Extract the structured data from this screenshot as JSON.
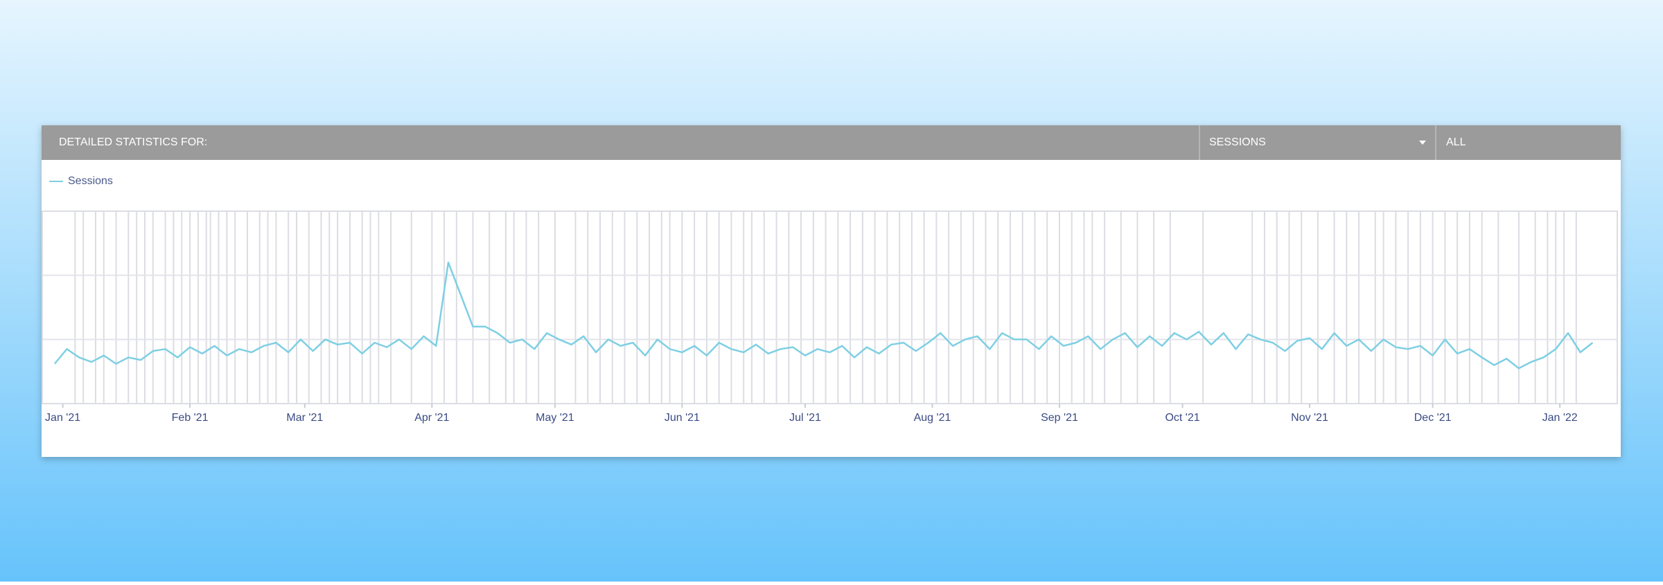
{
  "header": {
    "title": "DETAILED STATISTICS FOR:",
    "metric": "SESSIONS",
    "filter": "ALL"
  },
  "chart_data": {
    "type": "line",
    "x": [
      -2,
      1,
      4,
      7,
      10,
      13,
      16,
      19,
      22,
      25,
      28,
      31,
      34,
      37,
      40,
      43,
      46,
      49,
      52,
      55,
      58,
      61,
      64,
      67,
      70,
      73,
      76,
      79,
      82,
      85,
      88,
      91,
      94,
      97,
      100,
      103,
      106,
      109,
      112,
      115,
      118,
      121,
      124,
      127,
      130,
      133,
      136,
      139,
      142,
      145,
      148,
      151,
      154,
      157,
      160,
      163,
      166,
      169,
      172,
      175,
      178,
      181,
      184,
      187,
      190,
      193,
      196,
      199,
      202,
      205,
      208,
      211,
      214,
      217,
      220,
      223,
      226,
      229,
      232,
      235,
      238,
      241,
      244,
      247,
      250,
      253,
      256,
      259,
      262,
      265,
      268,
      271,
      274,
      277,
      280,
      283,
      286,
      289,
      292,
      295,
      298,
      301,
      304,
      307,
      310,
      313,
      316,
      319,
      322,
      325,
      328,
      331,
      334,
      337,
      340,
      343,
      346,
      349,
      352,
      355,
      358,
      361,
      364,
      367,
      370,
      373
    ],
    "series": [
      {
        "name": "Sessions",
        "color": "#7ecfe3",
        "values": [
          0.62,
          0.85,
          0.72,
          0.65,
          0.75,
          0.62,
          0.72,
          0.68,
          0.82,
          0.85,
          0.72,
          0.88,
          0.78,
          0.9,
          0.75,
          0.85,
          0.8,
          0.9,
          0.95,
          0.8,
          1.0,
          0.82,
          1.0,
          0.92,
          0.95,
          0.78,
          0.95,
          0.88,
          1.0,
          0.85,
          1.05,
          0.9,
          2.2,
          1.7,
          1.2,
          1.2,
          1.1,
          0.95,
          1.0,
          0.85,
          1.1,
          1.0,
          0.92,
          1.05,
          0.8,
          1.0,
          0.9,
          0.95,
          0.75,
          1.0,
          0.85,
          0.8,
          0.9,
          0.75,
          0.95,
          0.85,
          0.8,
          0.92,
          0.78,
          0.85,
          0.88,
          0.75,
          0.85,
          0.8,
          0.9,
          0.72,
          0.88,
          0.78,
          0.92,
          0.95,
          0.82,
          0.95,
          1.1,
          0.9,
          1.0,
          1.05,
          0.85,
          1.1,
          1.0,
          1.0,
          0.85,
          1.05,
          0.9,
          0.95,
          1.05,
          0.85,
          1.0,
          1.1,
          0.88,
          1.05,
          0.9,
          1.1,
          1.0,
          1.12,
          0.92,
          1.1,
          0.85,
          1.08,
          1.0,
          0.95,
          0.82,
          0.98,
          1.02,
          0.85,
          1.1,
          0.9,
          1.0,
          0.82,
          1.0,
          0.88,
          0.85,
          0.9,
          0.75,
          1.0,
          0.78,
          0.85,
          0.72,
          0.6,
          0.7,
          0.55,
          0.65,
          0.72,
          0.85,
          1.1,
          0.8,
          0.95
        ]
      }
    ],
    "markers": [
      3,
      5,
      8,
      10,
      13,
      16,
      18,
      20,
      22,
      25,
      27,
      29,
      31,
      33,
      35,
      36,
      38,
      40,
      42,
      45,
      48,
      50,
      52,
      55,
      57,
      60,
      63,
      65,
      67,
      70,
      73,
      75,
      77,
      80,
      85,
      90,
      93,
      96,
      100,
      104,
      108,
      110,
      113,
      116,
      120,
      125,
      128,
      131,
      134,
      137,
      140,
      143,
      146,
      148,
      151,
      154,
      157,
      160,
      163,
      166,
      168,
      171,
      174,
      177,
      180,
      183,
      186,
      189,
      192,
      195,
      198,
      201,
      204,
      207,
      210,
      213,
      216,
      219,
      222,
      225,
      228,
      231,
      234,
      237,
      240,
      243,
      246,
      249,
      251,
      254,
      258,
      262,
      266,
      270,
      278,
      290,
      293,
      296,
      299,
      302,
      306,
      310,
      313,
      316,
      320,
      322,
      325,
      328,
      331,
      334,
      337,
      340,
      343,
      346,
      350,
      355,
      359,
      362,
      364,
      366,
      369
    ],
    "xlim": [
      -5,
      379
    ],
    "xticks": [
      {
        "value": 0,
        "label": "Jan '21"
      },
      {
        "value": 31,
        "label": "Feb '21"
      },
      {
        "value": 59,
        "label": "Mar '21"
      },
      {
        "value": 90,
        "label": "Apr '21"
      },
      {
        "value": 120,
        "label": "May '21"
      },
      {
        "value": 151,
        "label": "Jun '21"
      },
      {
        "value": 181,
        "label": "Jul '21"
      },
      {
        "value": 212,
        "label": "Aug '21"
      },
      {
        "value": 243,
        "label": "Sep '21"
      },
      {
        "value": 273,
        "label": "Oct '21"
      },
      {
        "value": 304,
        "label": "Nov '21"
      },
      {
        "value": 334,
        "label": "Dec '21"
      },
      {
        "value": 365,
        "label": "Jan '22"
      }
    ],
    "ylim": [
      0,
      3
    ],
    "grid": true
  }
}
